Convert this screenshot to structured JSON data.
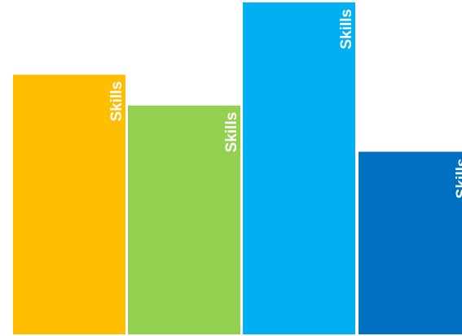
{
  "chart_data": {
    "type": "bar",
    "categories": [
      "",
      "",
      "",
      ""
    ],
    "series": [
      {
        "values": [
          320,
          282,
          409,
          225
        ],
        "labels": [
          "Skills",
          "Skills",
          "Skills",
          "Skills"
        ],
        "colors": [
          "#FFBF00",
          "#92D050",
          "#00B0F0",
          "#0070C0"
        ]
      }
    ],
    "ylim": [
      0,
      412
    ],
    "grid": false,
    "legend": "none",
    "title": "",
    "xlabel": "",
    "ylabel": ""
  }
}
